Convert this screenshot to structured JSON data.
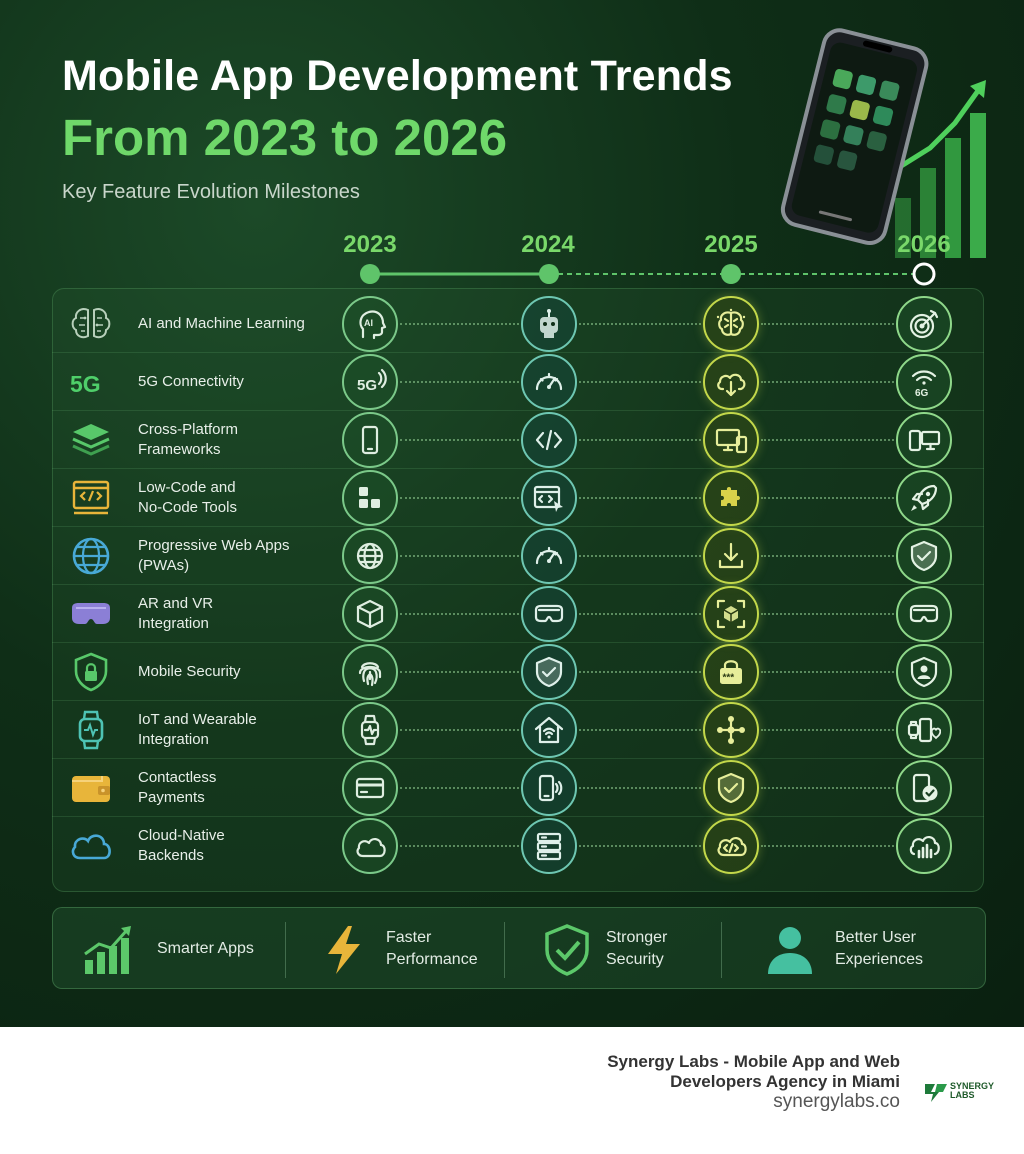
{
  "header": {
    "title_line1": "Mobile App Development Trends",
    "title_line2": "From 2023 to 2026",
    "subtitle": "Key Feature Evolution Milestones"
  },
  "years": [
    "2023",
    "2024",
    "2025",
    "2026"
  ],
  "rows": [
    {
      "label": "AI and Machine Learning",
      "icon": "brain-circuit-icon",
      "stages": [
        "ai-head-icon",
        "robot-icon",
        "brain-icon",
        "target-icon"
      ]
    },
    {
      "label": "5G Connectivity",
      "icon": "5g-icon",
      "stages": [
        "5g-signal-icon",
        "speedometer-icon",
        "cloud-download-icon",
        "6g-wifi-icon"
      ]
    },
    {
      "label": "Cross-Platform\nFrameworks",
      "icon": "layers-icon",
      "stages": [
        "phone-icon",
        "code-icon",
        "devices-icon",
        "phone-monitor-icon"
      ]
    },
    {
      "label": "Low-Code and\nNo-Code Tools",
      "icon": "code-window-icon",
      "stages": [
        "blocks-icon",
        "code-cursor-icon",
        "puzzle-icon",
        "rocket-icon"
      ]
    },
    {
      "label": "Progressive Web Apps\n(PWAs)",
      "icon": "globe-icon",
      "stages": [
        "globe-icon",
        "speedometer-icon",
        "download-icon",
        "shield-check-icon"
      ]
    },
    {
      "label": "AR and VR\nIntegration",
      "icon": "vr-headset-icon",
      "stages": [
        "cube-icon",
        "vr-goggles-icon",
        "ar-cube-icon",
        "vr-goggles-icon"
      ]
    },
    {
      "label": "Mobile Security",
      "icon": "shield-lock-icon",
      "stages": [
        "fingerprint-icon",
        "shield-check-icon",
        "password-lock-icon",
        "shield-user-icon"
      ]
    },
    {
      "label": "IoT and Wearable\nIntegration",
      "icon": "smartwatch-icon",
      "stages": [
        "smartwatch-icon",
        "smart-home-icon",
        "network-nodes-icon",
        "wearable-devices-icon"
      ]
    },
    {
      "label": "Contactless\nPayments",
      "icon": "wallet-icon",
      "stages": [
        "credit-card-icon",
        "phone-nfc-icon",
        "shield-check-icon",
        "phone-check-icon"
      ]
    },
    {
      "label": "Cloud-Native\nBackends",
      "icon": "cloud-icon",
      "stages": [
        "cloud-icon",
        "server-icon",
        "cloud-code-icon",
        "cloud-analytics-icon"
      ]
    }
  ],
  "benefits": [
    {
      "label": "Smarter Apps",
      "icon": "growth-chart-icon"
    },
    {
      "label": "Faster\nPerformance",
      "icon": "lightning-icon"
    },
    {
      "label": "Stronger\nSecurity",
      "icon": "shield-check-icon"
    },
    {
      "label": "Better User\nExperiences",
      "icon": "user-icon"
    }
  ],
  "footer": {
    "company_line1": "Synergy Labs - Mobile App and Web",
    "company_line2": "Developers Agency in Miami",
    "url": "synergylabs.co",
    "logo_text_line1": "SYNERGY",
    "logo_text_line2": "LABS"
  },
  "colors": {
    "title_green": "#6fd86a",
    "year_green": "#79d86a",
    "circle_green": "#7bc989",
    "circle_teal": "#6ec7b2",
    "circle_yellow": "#c3d84a"
  }
}
